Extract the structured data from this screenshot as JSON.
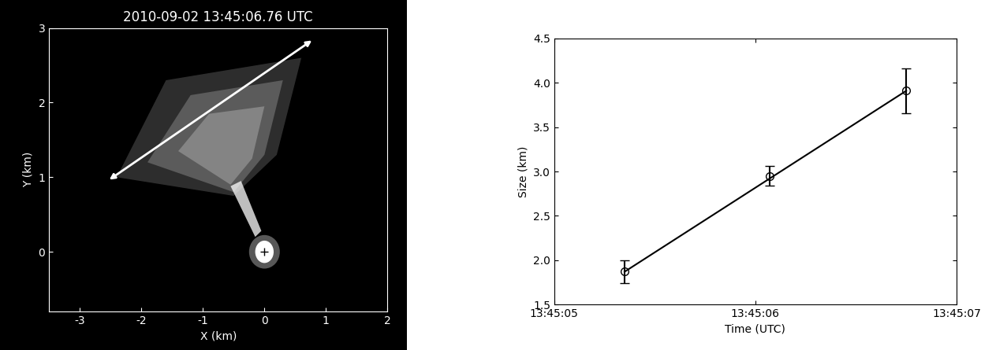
{
  "chart_data": [
    {
      "type": "image",
      "title": "2010-09-02 13:45:06.76 UTC",
      "x_label": "X (km)",
      "y_label": "Y (km)",
      "xlim": [
        -3.5,
        2
      ],
      "ylim": [
        -0.8,
        3
      ],
      "xticks": [
        -3,
        -2,
        -1,
        0,
        1,
        2
      ],
      "yticks": [
        0,
        1,
        2,
        3
      ]
    },
    {
      "type": "scatter",
      "x_label": "Time (UTC)",
      "y_label": "Size (km)",
      "x": [
        5.35,
        6.07,
        6.75
      ],
      "values": [
        1.87,
        2.95,
        3.91
      ],
      "errors": [
        0.13,
        0.11,
        0.25
      ],
      "fit": {
        "x": [
          5.35,
          6.75
        ],
        "values": [
          1.87,
          3.91
        ]
      },
      "marker": "circle",
      "color": "#000000",
      "xlim": [
        5,
        7
      ],
      "ylim": [
        1.5,
        4.5
      ],
      "xticks": [
        {
          "value": 5,
          "label": "13:45:05"
        },
        {
          "value": 6,
          "label": "13:45:06"
        },
        {
          "value": 7,
          "label": "13:45:07"
        }
      ],
      "yticks": [
        1.5,
        2.0,
        2.5,
        3.0,
        3.5,
        4.0,
        4.5
      ]
    }
  ]
}
